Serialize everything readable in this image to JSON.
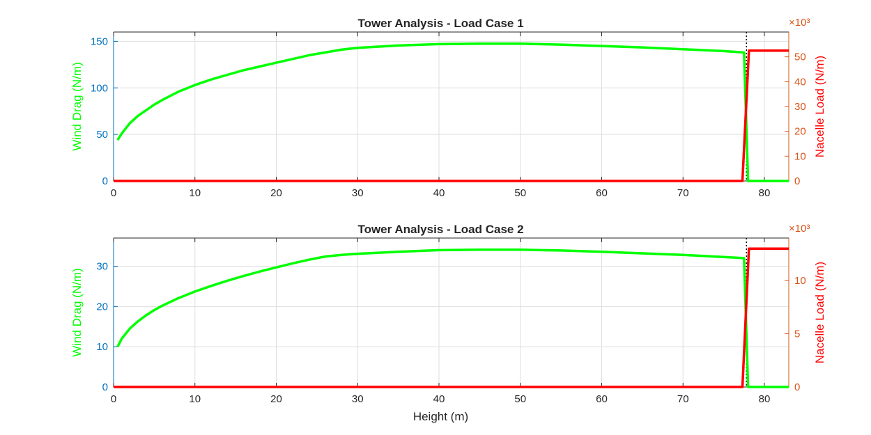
{
  "colors": {
    "left_axis": "#0072BD",
    "right_axis": "#D95319",
    "wind": "#00FF00",
    "nacelle": "#FF0000",
    "x_axis": "#262626",
    "grid": "#DFDFDF",
    "marker": "#000000"
  },
  "chart_data": [
    {
      "type": "line",
      "title": "Tower Analysis - Load Case 1",
      "xlabel": "",
      "ylabel_left": "Wind Drag (N/m)",
      "ylabel_right": "Nacelle Load (N/m)",
      "right_exponent": "×10³",
      "xlim": [
        0,
        83
      ],
      "ylim_left": [
        0,
        160
      ],
      "ylim_right": [
        0,
        60000
      ],
      "xticks": [
        0,
        10,
        20,
        30,
        40,
        50,
        60,
        70,
        80
      ],
      "xtick_labels": [
        "0",
        "10",
        "20",
        "30",
        "40",
        "50",
        "60",
        "70",
        "80"
      ],
      "yticks_left": [
        0,
        50,
        100,
        150
      ],
      "ytick_labels_left": [
        "0",
        "50",
        "100",
        "150"
      ],
      "yticks_right": [
        0,
        10000,
        20000,
        30000,
        40000,
        50000
      ],
      "ytick_labels_right": [
        "0",
        "10",
        "20",
        "30",
        "40",
        "50"
      ],
      "grid": true,
      "marker_x": 77.8,
      "series": [
        {
          "axis": "left",
          "x": [
            0.5,
            1,
            2,
            3,
            4,
            5,
            6,
            8,
            10,
            12,
            14,
            16,
            18,
            20,
            22,
            24,
            26,
            28,
            30,
            35,
            40,
            45,
            50,
            55,
            60,
            65,
            70,
            75,
            77.5,
            78,
            83
          ],
          "y": [
            44,
            51,
            62,
            70,
            76,
            82,
            87,
            96,
            103,
            109,
            114,
            119,
            123,
            127,
            131,
            135,
            138,
            141,
            143,
            145.5,
            147,
            147.5,
            147.5,
            146.5,
            145,
            143.5,
            141.5,
            139.5,
            138,
            0,
            0
          ]
        },
        {
          "axis": "right",
          "x": [
            0,
            77.3,
            78.1,
            83
          ],
          "y": [
            0,
            0,
            52500,
            52500
          ]
        }
      ]
    },
    {
      "type": "line",
      "title": "Tower Analysis - Load Case 2",
      "xlabel": "Height (m)",
      "ylabel_left": "Wind Drag (N/m)",
      "ylabel_right": "Nacelle Load (N/m)",
      "right_exponent": "×10³",
      "xlim": [
        0,
        83
      ],
      "ylim_left": [
        0,
        37
      ],
      "ylim_right": [
        0,
        14000
      ],
      "xticks": [
        0,
        10,
        20,
        30,
        40,
        50,
        60,
        70,
        80
      ],
      "xtick_labels": [
        "0",
        "10",
        "20",
        "30",
        "40",
        "50",
        "60",
        "70",
        "80"
      ],
      "yticks_left": [
        0,
        10,
        20,
        30
      ],
      "ytick_labels_left": [
        "0",
        "10",
        "20",
        "30"
      ],
      "yticks_right": [
        0,
        5000,
        10000
      ],
      "ytick_labels_right": [
        "0",
        "5",
        "10"
      ],
      "grid": true,
      "marker_x": 77.8,
      "series": [
        {
          "axis": "left",
          "x": [
            0.5,
            1,
            2,
            3,
            4,
            5,
            6,
            8,
            10,
            12,
            14,
            16,
            18,
            20,
            22,
            24,
            26,
            28,
            30,
            35,
            40,
            45,
            50,
            55,
            60,
            65,
            70,
            75,
            77.5,
            78,
            83
          ],
          "y": [
            10,
            12,
            14.5,
            16.3,
            17.8,
            19.1,
            20.2,
            22.1,
            23.7,
            25.1,
            26.4,
            27.6,
            28.7,
            29.7,
            30.7,
            31.6,
            32.4,
            32.8,
            33.1,
            33.6,
            34,
            34.1,
            34.1,
            33.9,
            33.6,
            33.2,
            32.8,
            32.3,
            32,
            0,
            0
          ]
        },
        {
          "axis": "right",
          "x": [
            0,
            77.3,
            78.1,
            83
          ],
          "y": [
            0,
            0,
            13000,
            13000
          ]
        }
      ]
    }
  ]
}
